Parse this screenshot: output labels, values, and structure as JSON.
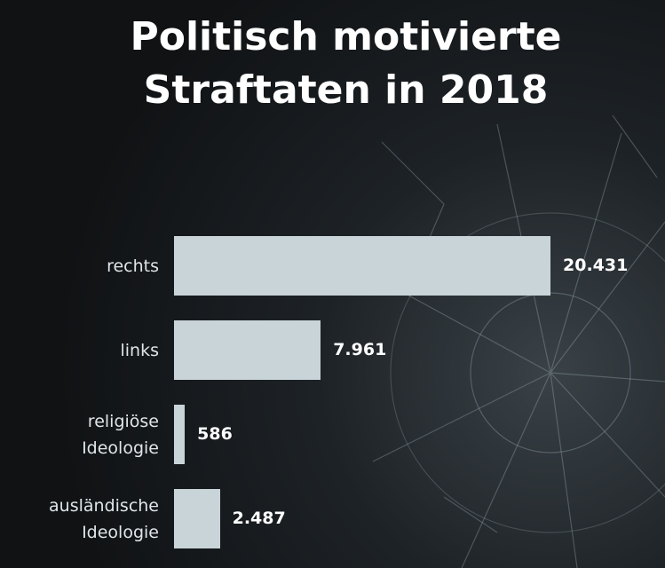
{
  "chart_data": {
    "type": "bar",
    "orientation": "horizontal",
    "title": "Politisch motivierte\nStraftaten in 2018",
    "categories": [
      "rechts",
      "links",
      "religiöse\nIdeologie",
      "ausländische\nIdeologie"
    ],
    "values": [
      20431,
      7961,
      586,
      2487
    ],
    "value_labels": [
      "20.431",
      "7.961",
      "586",
      "2.487"
    ],
    "color": "#c9d4d9"
  }
}
